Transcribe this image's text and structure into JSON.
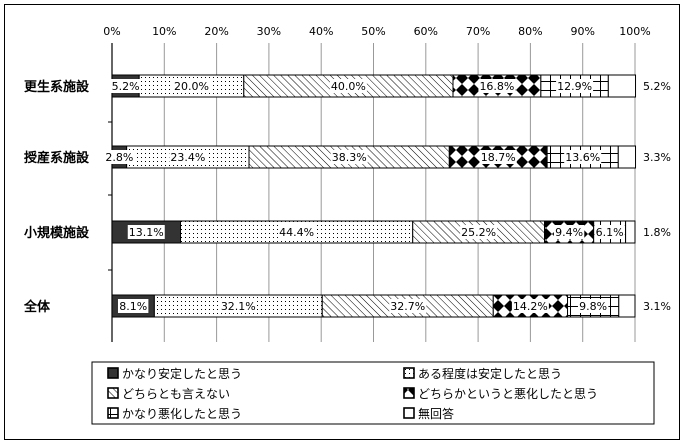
{
  "chart_data": {
    "type": "bar",
    "orientation": "horizontal",
    "stacked": true,
    "percent": true,
    "xlim": [
      0,
      100
    ],
    "x_ticks": [
      "0%",
      "10%",
      "20%",
      "30%",
      "40%",
      "50%",
      "60%",
      "70%",
      "80%",
      "90%",
      "100%"
    ],
    "grid": true,
    "legend_position": "bottom",
    "categories": [
      "更生系施設",
      "授産系施設",
      "小規模施設",
      "全体"
    ],
    "series": [
      {
        "name": "かなり安定したと思う",
        "values": [
          5.2,
          2.8,
          13.1,
          8.1
        ],
        "labels": [
          "5.2%",
          "2.8%",
          "13.1%",
          "8.1%"
        ],
        "color": "#333333"
      },
      {
        "name": "ある程度は安定したと思う",
        "values": [
          20.0,
          23.4,
          44.4,
          32.1
        ],
        "labels": [
          "20.0%",
          "23.4%",
          "44.4%",
          "32.1%"
        ],
        "color": "#ffffff"
      },
      {
        "name": "どちらとも言えない",
        "values": [
          40.0,
          38.3,
          25.2,
          32.7
        ],
        "labels": [
          "40.0%",
          "38.3%",
          "25.2%",
          "32.7%"
        ],
        "color": "#ffffff"
      },
      {
        "name": "どちらかというと悪化したと思う",
        "values": [
          16.8,
          18.7,
          9.4,
          14.2
        ],
        "labels": [
          "16.8%",
          "18.7%",
          "9.4%",
          "14.2%"
        ],
        "color": "#000000"
      },
      {
        "name": "かなり悪化したと思う",
        "values": [
          12.9,
          13.6,
          6.1,
          9.8
        ],
        "labels": [
          "12.9%",
          "13.6%",
          "6.1%",
          "9.8%"
        ],
        "color": "#000000"
      },
      {
        "name": "無回答",
        "values": [
          5.2,
          3.3,
          1.8,
          3.1
        ],
        "labels": [
          "5.2%",
          "3.3%",
          "1.8%",
          "3.1%"
        ],
        "color": "#ffffff"
      }
    ]
  }
}
